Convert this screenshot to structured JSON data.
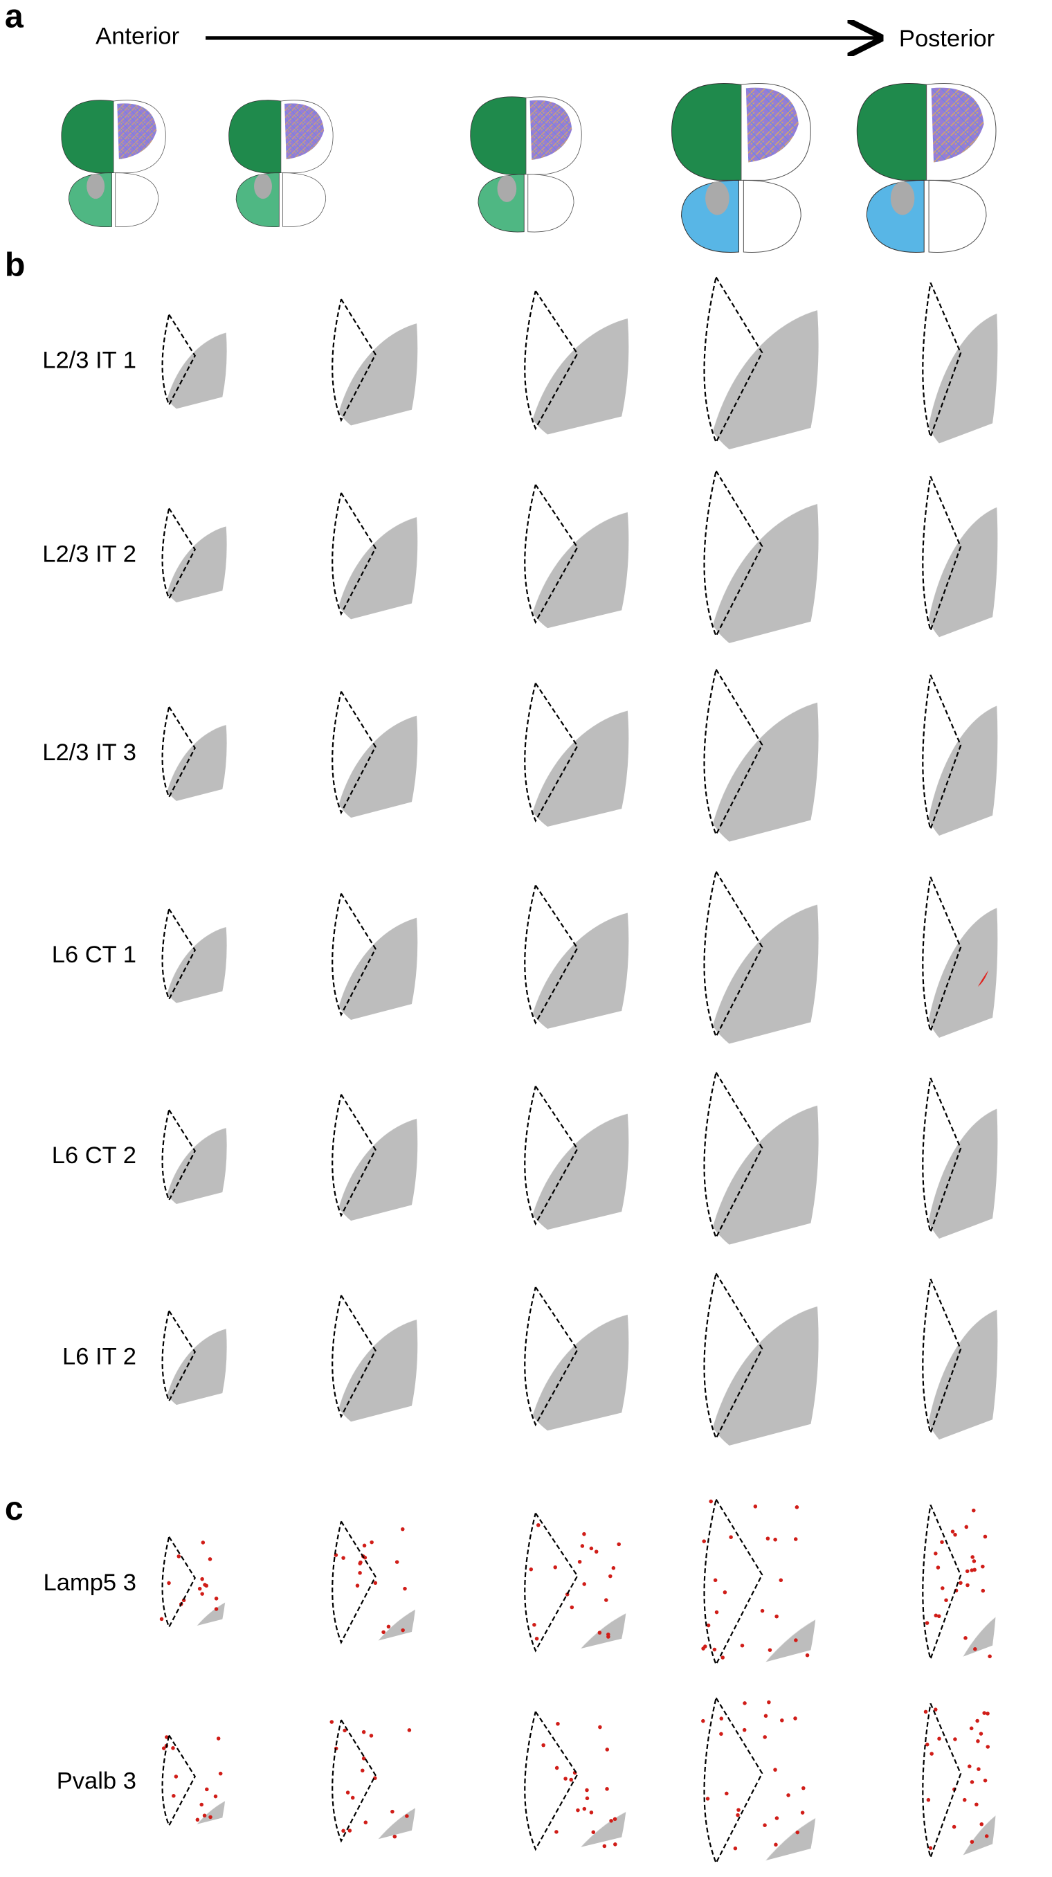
{
  "panel_a": {
    "label": "a",
    "start": "Anterior",
    "end": "Posterior"
  },
  "panel_b": {
    "label": "b",
    "rows": [
      "L2/3 IT 1",
      "L2/3 IT 2",
      "L2/3 IT 3",
      "L6 CT 1",
      "L6 CT 2",
      "L6 IT 2"
    ]
  },
  "panel_c": {
    "label": "c",
    "rows": [
      "Lamp5 3",
      "Pvalb 3"
    ]
  }
}
